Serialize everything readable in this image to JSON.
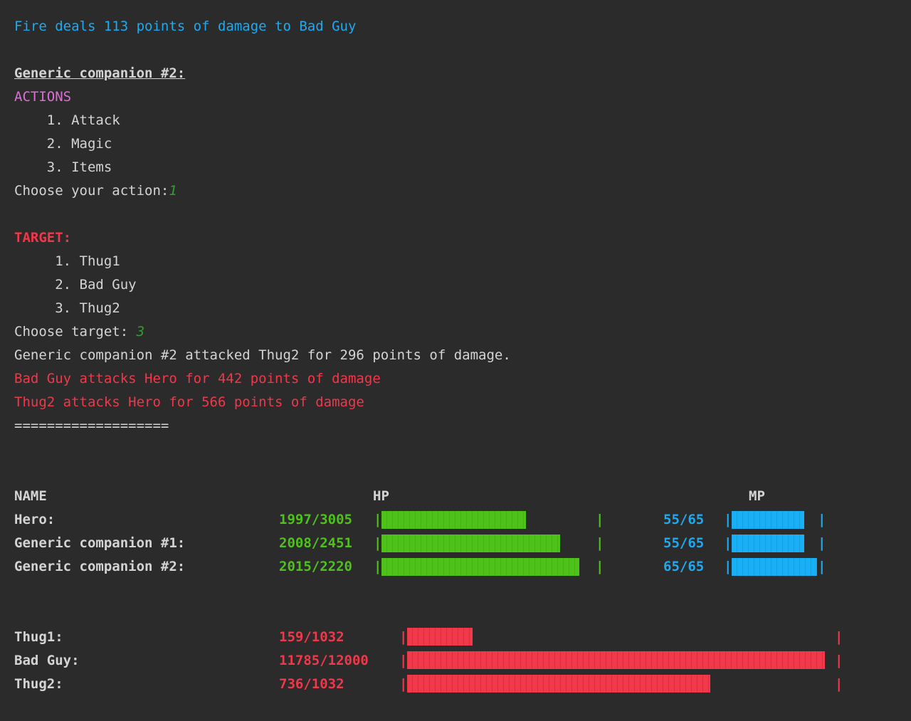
{
  "log": {
    "fire_msg": "Fire deals 113 points of damage to Bad Guy",
    "turn_header": "Generic companion #2:",
    "actions_title": "ACTIONS",
    "actions": [
      "    1. Attack",
      "    2. Magic",
      "    3. Items"
    ],
    "choose_action_prompt": "Choose your action:",
    "choose_action_value": "1",
    "target_title": "TARGET:",
    "targets": [
      "     1. Thug1",
      "     2. Bad Guy",
      "     3. Thug2"
    ],
    "choose_target_prompt": "Choose target: ",
    "choose_target_value": "3",
    "attack_result": "Generic companion #2 attacked Thug2 for 296 points of damage.",
    "enemy_attack_1": "Bad Guy attacks Hero for 442 points of damage",
    "enemy_attack_2": "Thug2 attacks Hero for 566 points of damage",
    "separator": "==================="
  },
  "status": {
    "headers": {
      "name": "NAME",
      "hp": "HP",
      "mp": "MP"
    },
    "party": [
      {
        "name": "Hero:",
        "hp": "1997/3005",
        "hp_fraction": 0.6645,
        "mp": "55/65",
        "mp_fraction": 0.846
      },
      {
        "name": "Generic companion #1:",
        "hp": "2008/2451",
        "hp_fraction": 0.8193,
        "mp": "55/65",
        "mp_fraction": 0.846
      },
      {
        "name": "Generic companion #2:",
        "hp": "2015/2220",
        "hp_fraction": 0.9077,
        "mp": "65/65",
        "mp_fraction": 1.0
      }
    ],
    "enemies": [
      {
        "name": "Thug1:",
        "hp": "159/1032",
        "hp_fraction": 0.154
      },
      {
        "name": "Bad Guy:",
        "hp": "11785/12000",
        "hp_fraction": 0.982
      },
      {
        "name": "Thug2:",
        "hp": "736/1032",
        "hp_fraction": 0.713
      }
    ],
    "pipe": "|"
  },
  "colors": {
    "background": "#2b2b2b",
    "text": "#d4d4d4",
    "info_blue": "#1eaaf1",
    "actions_magenta": "#db6fd6",
    "alert_red": "#f0384a",
    "hp_green": "#4ec21a",
    "input_green": "#2ea02e"
  }
}
